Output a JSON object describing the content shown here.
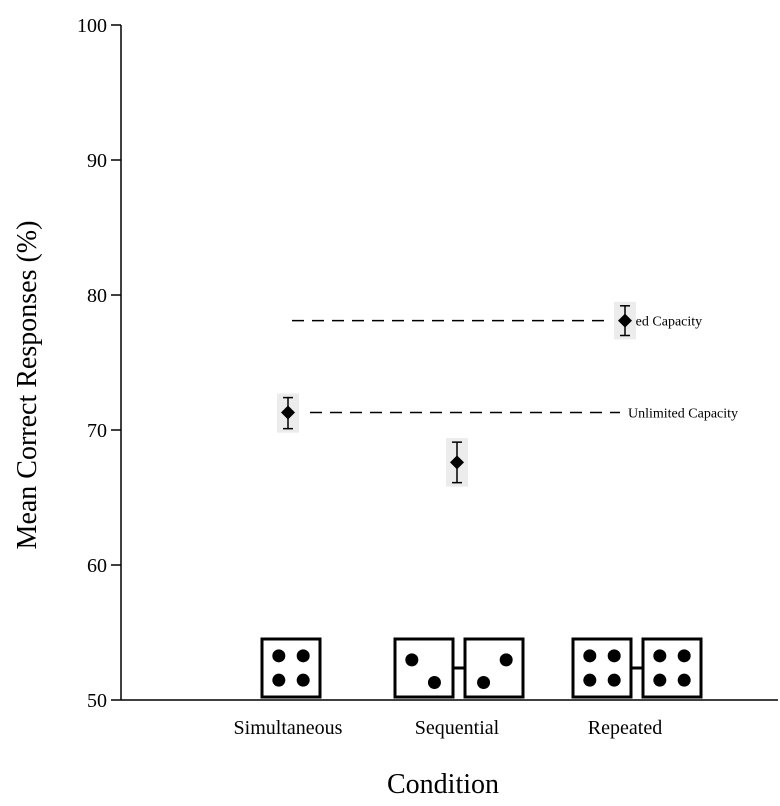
{
  "chart_data": {
    "type": "scatter",
    "title": "",
    "xlabel": "Condition",
    "ylabel": "Mean Correct Responses (%)",
    "ylim": [
      50,
      100
    ],
    "yticks": [
      50,
      60,
      70,
      80,
      90,
      100
    ],
    "grid": false,
    "categories": [
      "Simultaneous",
      "Sequential",
      "Repeated"
    ],
    "points": [
      {
        "category": "Simultaneous",
        "value": 71.3,
        "error_low": 70.1,
        "error_high": 72.4
      },
      {
        "category": "Sequential",
        "value": 67.6,
        "error_low": 66.1,
        "error_high": 69.1
      },
      {
        "category": "Repeated",
        "value": 78.1,
        "error_low": 77.0,
        "error_high": 79.2
      }
    ],
    "reference_lines": [
      {
        "label": "Fixed Capacity",
        "value": 78.1
      },
      {
        "label": "Unlimited Capacity",
        "value": 71.3
      }
    ],
    "stimuli": [
      {
        "category": "Simultaneous",
        "dice": [
          4
        ]
      },
      {
        "category": "Sequential",
        "dice": [
          2,
          2
        ]
      },
      {
        "category": "Repeated",
        "dice": [
          4,
          4
        ]
      }
    ]
  }
}
